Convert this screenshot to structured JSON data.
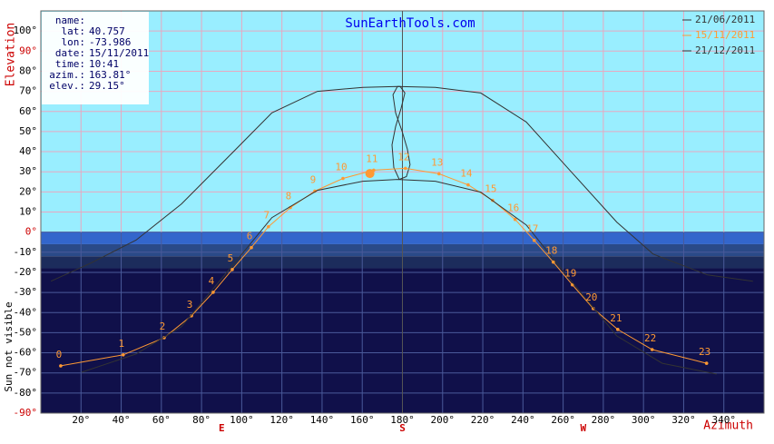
{
  "chart_data": {
    "type": "line",
    "title": "SunEarthTools.com",
    "y_label": "Elevation",
    "x_label": "Azimuth",
    "side_label": "Sun not visible",
    "xlim": [
      0,
      360
    ],
    "ylim": [
      -90,
      110
    ],
    "xticks": [
      {
        "value": 20,
        "label": "20°"
      },
      {
        "value": 40,
        "label": "40°"
      },
      {
        "value": 60,
        "label": "60°"
      },
      {
        "value": 80,
        "label": "80°"
      },
      {
        "value": 100,
        "label": "100°"
      },
      {
        "value": 120,
        "label": "120°"
      },
      {
        "value": 140,
        "label": "140°"
      },
      {
        "value": 160,
        "label": "160°"
      },
      {
        "value": 180,
        "label": "180°"
      },
      {
        "value": 200,
        "label": "200°"
      },
      {
        "value": 220,
        "label": "220°"
      },
      {
        "value": 240,
        "label": "240°"
      },
      {
        "value": 260,
        "label": "260°"
      },
      {
        "value": 280,
        "label": "280°"
      },
      {
        "value": 300,
        "label": "300°"
      },
      {
        "value": 320,
        "label": "320°"
      },
      {
        "value": 340,
        "label": "340°"
      }
    ],
    "compass_ticks": [
      {
        "value": 90,
        "label": "E"
      },
      {
        "value": 180,
        "label": "S"
      },
      {
        "value": 270,
        "label": "W"
      }
    ],
    "yticks": [
      {
        "value": 100,
        "label": "100°"
      },
      {
        "value": 90,
        "label": "90°"
      },
      {
        "value": 80,
        "label": "80°"
      },
      {
        "value": 70,
        "label": "70°"
      },
      {
        "value": 60,
        "label": "60°"
      },
      {
        "value": 50,
        "label": "50°"
      },
      {
        "value": 40,
        "label": "40°"
      },
      {
        "value": 30,
        "label": "30°"
      },
      {
        "value": 20,
        "label": "20°"
      },
      {
        "value": 10,
        "label": "10°"
      },
      {
        "value": 0,
        "label": "0°"
      },
      {
        "value": -10,
        "label": "-10°"
      },
      {
        "value": -20,
        "label": "-20°"
      },
      {
        "value": -30,
        "label": "-30°"
      },
      {
        "value": -40,
        "label": "-40°"
      },
      {
        "value": -50,
        "label": "-50°"
      },
      {
        "value": -60,
        "label": "-60°"
      },
      {
        "value": -70,
        "label": "-70°"
      },
      {
        "value": -80,
        "label": "-80°"
      },
      {
        "value": -90,
        "label": "-90°"
      }
    ],
    "grid": true,
    "sky_color": "#99eeff",
    "bands": [
      {
        "from": 0,
        "to": -6,
        "color": "#3366cc"
      },
      {
        "from": -6,
        "to": -12,
        "color": "#2a4a88"
      },
      {
        "from": -12,
        "to": -18,
        "color": "#1c2c5c"
      },
      {
        "from": -18,
        "to": -90,
        "color": "#10104a"
      }
    ],
    "info": [
      {
        "label": "name:",
        "value": ""
      },
      {
        "label": "lat:",
        "value": "40.757"
      },
      {
        "label": "lon:",
        "value": "-73.986"
      },
      {
        "label": "date:",
        "value": "15/11/2011"
      },
      {
        "label": "time:",
        "value": "10:41"
      },
      {
        "label": "azim.:",
        "value": "163.81°"
      },
      {
        "label": "elev.:",
        "value": "29.15°"
      }
    ],
    "sun": {
      "azimuth": 163.81,
      "elevation": 29.15,
      "color": "#ff9933"
    },
    "series": [
      {
        "name": "21/06/2011",
        "color": "#333333",
        "x": [
          5,
          24.8,
          47.4,
          70,
          92.6,
          115,
          137.7,
          160.3,
          177.5,
          196.4,
          219,
          241.6,
          264.1,
          286.7,
          304.8,
          331.9,
          354.5
        ],
        "y": [
          -24.4,
          -15.4,
          -4,
          14,
          36.7,
          59.3,
          70,
          72,
          72.4,
          72,
          69.2,
          54.8,
          29.9,
          5,
          -10.9,
          -21.3,
          -24.4
        ]
      },
      {
        "name": "15/11/2011",
        "color": "#ff9933",
        "x": [
          9.9,
          41,
          61.4,
          75,
          85.8,
          95.3,
          104.8,
          113.3,
          124.2,
          136.4,
          150.4,
          165.7,
          181.5,
          198.2,
          212.7,
          224.9,
          236.1,
          245.6,
          255.1,
          264.6,
          275,
          287.2,
          304.3,
          331.4
        ],
        "y": [
          -66.5,
          -61,
          -52.5,
          -41.6,
          -29.9,
          -18.6,
          -7.7,
          2.7,
          12.2,
          20.4,
          26.7,
          30.8,
          31.7,
          29,
          23.5,
          15.8,
          6.3,
          -4.1,
          -14.9,
          -26.2,
          -38,
          -48.4,
          -58.4,
          -65.2
        ],
        "point_labels": [
          "0",
          "1",
          "2",
          "3",
          "4",
          "5",
          "6",
          "7",
          "8",
          "9",
          "10",
          "11",
          "12",
          "13",
          "14",
          "15",
          "16",
          "17",
          "18",
          "19",
          "20",
          "21",
          "22",
          "23"
        ]
      },
      {
        "name": "21/12/2011",
        "color": "#333333",
        "x": [
          20.3,
          47.4,
          70,
          92.6,
          115,
          137.7,
          160.3,
          177.5,
          196.4,
          219,
          241.6,
          264.1,
          286.7,
          309.3,
          336.4
        ],
        "y": [
          -69.7,
          -60.6,
          -47,
          -20,
          7.2,
          20.8,
          25.3,
          26.2,
          25.3,
          19.9,
          3.6,
          -24.4,
          -51.6,
          -65.2,
          -70.6
        ]
      }
    ],
    "analemma": {
      "color": "#333333",
      "x": [
        177.5,
        175.3,
        176.6,
        179.8,
        182.5,
        183.8,
        182,
        178.4,
        175.7,
        174.8,
        176.6,
        179.3,
        181.2,
        178.9,
        177.5
      ],
      "y": [
        72.4,
        68.3,
        59.3,
        50.2,
        41.2,
        33.5,
        27.6,
        26.2,
        32.1,
        43.4,
        52.5,
        61.5,
        69.2,
        72.4,
        72.4
      ]
    }
  }
}
